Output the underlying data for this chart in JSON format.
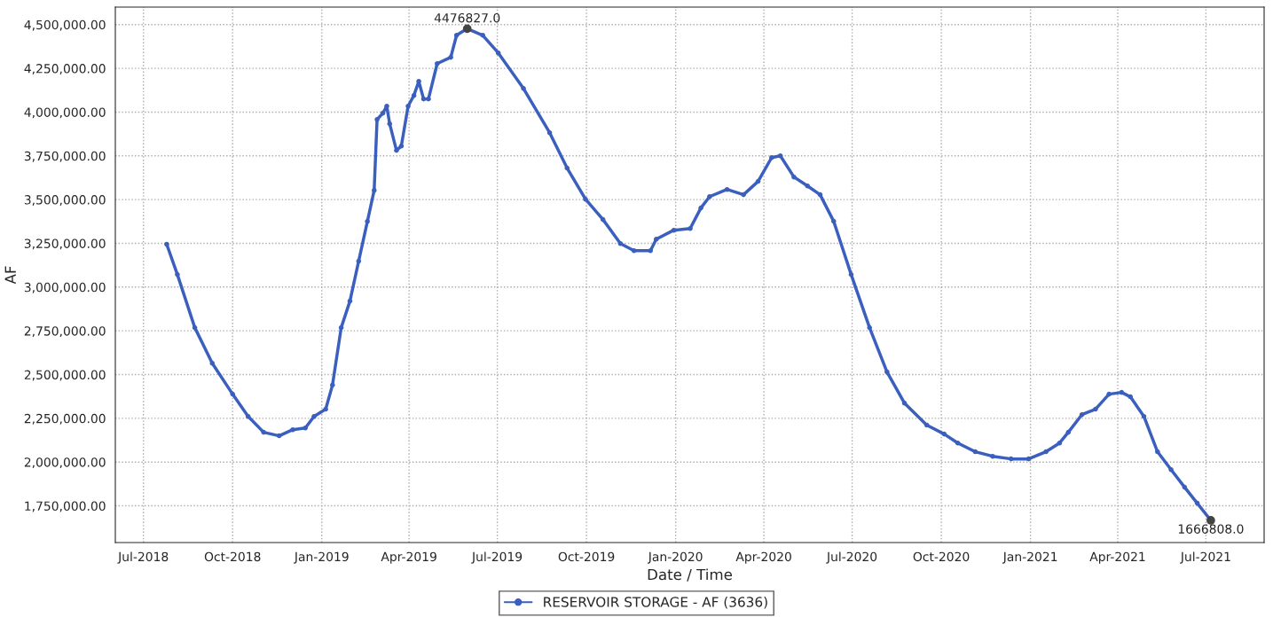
{
  "chart_data": {
    "type": "line",
    "xlabel": "Date / Time",
    "ylabel": "AF",
    "x": [
      "2018-07-25",
      "2018-08-05",
      "2018-08-23",
      "2018-09-10",
      "2018-10-01",
      "2018-10-17",
      "2018-11-02",
      "2018-11-18",
      "2018-12-02",
      "2018-12-15",
      "2018-12-24",
      "2019-01-05",
      "2019-01-12",
      "2019-01-21",
      "2019-01-30",
      "2019-02-08",
      "2019-02-17",
      "2019-02-24",
      "2019-02-27",
      "2019-03-05",
      "2019-03-09",
      "2019-03-12",
      "2019-03-19",
      "2019-03-24",
      "2019-03-31",
      "2019-04-06",
      "2019-04-11",
      "2019-04-16",
      "2019-04-21",
      "2019-04-30",
      "2019-05-14",
      "2019-05-20",
      "2019-05-31",
      "2019-06-16",
      "2019-07-02",
      "2019-07-28",
      "2019-08-24",
      "2019-09-11",
      "2019-09-30",
      "2019-10-18",
      "2019-11-05",
      "2019-11-19",
      "2019-12-06",
      "2019-12-12",
      "2019-12-30",
      "2020-01-16",
      "2020-01-27",
      "2020-02-05",
      "2020-02-23",
      "2020-03-11",
      "2020-03-26",
      "2020-04-09",
      "2020-04-18",
      "2020-05-02",
      "2020-05-16",
      "2020-05-29",
      "2020-06-12",
      "2020-06-30",
      "2020-07-19",
      "2020-08-06",
      "2020-08-24",
      "2020-09-16",
      "2020-10-04",
      "2020-10-18",
      "2020-11-05",
      "2020-11-23",
      "2020-12-12",
      "2020-12-30",
      "2021-01-17",
      "2021-01-31",
      "2021-02-09",
      "2021-02-23",
      "2021-03-09",
      "2021-03-23",
      "2021-04-05",
      "2021-04-14",
      "2021-04-28",
      "2021-05-12",
      "2021-05-26",
      "2021-06-09",
      "2021-06-22",
      "2021-07-06"
    ],
    "series": [
      {
        "name": "RESERVOIR STORAGE - AF (3636)",
        "color": "#3a5fbf",
        "values": [
          3245000,
          3072000,
          2768000,
          2565000,
          2388000,
          2261000,
          2170000,
          2150000,
          2185000,
          2195000,
          2261000,
          2302000,
          2440000,
          2768000,
          2920000,
          3148000,
          3375000,
          3553000,
          3958000,
          3994000,
          4034000,
          3933000,
          3781000,
          3806000,
          4034000,
          4095000,
          4176000,
          4075000,
          4075000,
          4277000,
          4313000,
          4439000,
          4476827,
          4439000,
          4338000,
          4135000,
          3882000,
          3680000,
          3502000,
          3386000,
          3249000,
          3208000,
          3208000,
          3274000,
          3325000,
          3335000,
          3452000,
          3517000,
          3558000,
          3528000,
          3604000,
          3740000,
          3750000,
          3629000,
          3578000,
          3528000,
          3376000,
          3072000,
          2768000,
          2515000,
          2337000,
          2211000,
          2160000,
          2109000,
          2059000,
          2033000,
          2018000,
          2018000,
          2059000,
          2109000,
          2170000,
          2271000,
          2302000,
          2388000,
          2398000,
          2373000,
          2261000,
          2059000,
          1957000,
          1856000,
          1765000,
          1666808
        ]
      }
    ],
    "xlim": [
      "2018-06-02",
      "2021-08-30"
    ],
    "xticks": [
      {
        "value": "2018-07-01",
        "label": "Jul-2018"
      },
      {
        "value": "2018-10-01",
        "label": "Oct-2018"
      },
      {
        "value": "2019-01-01",
        "label": "Jan-2019"
      },
      {
        "value": "2019-04-01",
        "label": "Apr-2019"
      },
      {
        "value": "2019-07-01",
        "label": "Jul-2019"
      },
      {
        "value": "2019-10-01",
        "label": "Oct-2019"
      },
      {
        "value": "2020-01-01",
        "label": "Jan-2020"
      },
      {
        "value": "2020-04-01",
        "label": "Apr-2020"
      },
      {
        "value": "2020-07-01",
        "label": "Jul-2020"
      },
      {
        "value": "2020-10-01",
        "label": "Oct-2020"
      },
      {
        "value": "2021-01-01",
        "label": "Jan-2021"
      },
      {
        "value": "2021-04-01",
        "label": "Apr-2021"
      },
      {
        "value": "2021-07-01",
        "label": "Jul-2021"
      }
    ],
    "ylim": [
      1540000,
      4600000
    ],
    "yticks": [
      {
        "value": 1750000,
        "label": "1,750,000.00"
      },
      {
        "value": 2000000,
        "label": "2,000,000.00"
      },
      {
        "value": 2250000,
        "label": "2,250,000.00"
      },
      {
        "value": 2500000,
        "label": "2,500,000.00"
      },
      {
        "value": 2750000,
        "label": "2,750,000.00"
      },
      {
        "value": 3000000,
        "label": "3,000,000.00"
      },
      {
        "value": 3250000,
        "label": "3,250,000.00"
      },
      {
        "value": 3500000,
        "label": "3,500,000.00"
      },
      {
        "value": 3750000,
        "label": "3,750,000.00"
      },
      {
        "value": 4000000,
        "label": "4,000,000.00"
      },
      {
        "value": 4250000,
        "label": "4,250,000.00"
      },
      {
        "value": 4500000,
        "label": "4,500,000.00"
      }
    ],
    "annotations": [
      {
        "text": "4476827.0",
        "x": "2019-05-31",
        "y": 4476827
      },
      {
        "text": "1666808.0",
        "x": "2021-07-06",
        "y": 1666808
      }
    ],
    "grid": true,
    "legend": "bottom",
    "marker": "circle",
    "line_style": "solid"
  }
}
